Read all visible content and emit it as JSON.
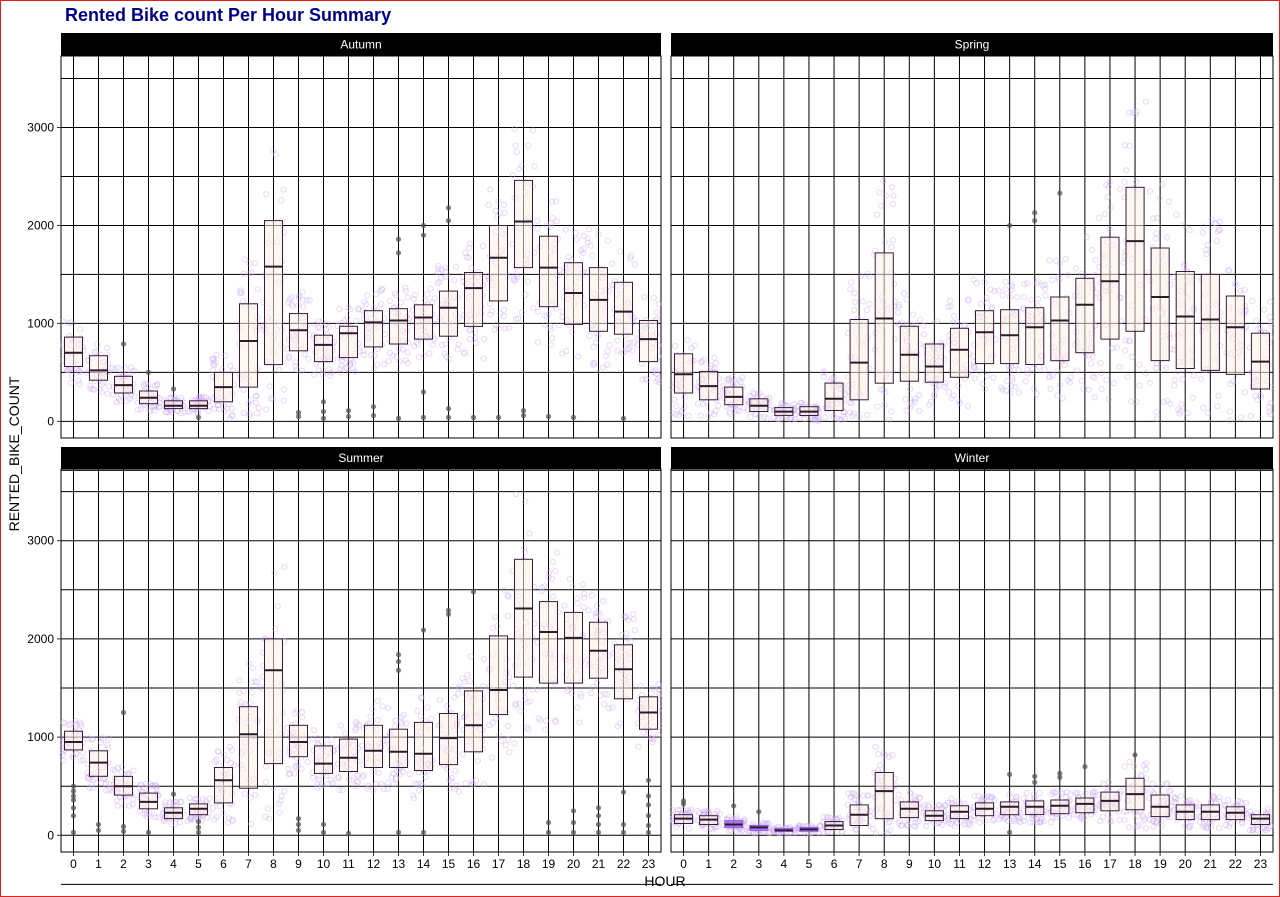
{
  "chart_data": {
    "type": "boxplot",
    "title": "Rented Bike count Per Hour Summary",
    "xlabel": "HOUR",
    "ylabel": "RENTED_BIKE_COUNT",
    "ylim": [
      -170,
      3730
    ],
    "yticks": [
      0,
      1000,
      2000,
      3000
    ],
    "grid": true,
    "legend": "none",
    "colors": {
      "box_fill": "#fdf0e6",
      "box_outline": "#3a1a3a",
      "points": "#c9a8f2",
      "outliers": "#555555",
      "strip_bg": "#000000",
      "strip_text": "#ffffff",
      "title": "#00008b",
      "winter_box": "#9a5ee8",
      "border": "#e0201a"
    },
    "categories": [
      "0",
      "1",
      "2",
      "3",
      "4",
      "5",
      "6",
      "7",
      "8",
      "9",
      "10",
      "11",
      "12",
      "13",
      "14",
      "15",
      "16",
      "17",
      "18",
      "19",
      "20",
      "21",
      "22",
      "23"
    ],
    "facets": [
      {
        "name": "Autumn",
        "boxes": [
          [
            560,
            700,
            860
          ],
          [
            420,
            520,
            670
          ],
          [
            290,
            370,
            460
          ],
          [
            180,
            240,
            310
          ],
          [
            130,
            160,
            210
          ],
          [
            130,
            160,
            210
          ],
          [
            200,
            350,
            500
          ],
          [
            350,
            820,
            1200
          ],
          [
            580,
            1580,
            2050
          ],
          [
            720,
            930,
            1100
          ],
          [
            610,
            780,
            880
          ],
          [
            650,
            900,
            970
          ],
          [
            760,
            1010,
            1130
          ],
          [
            790,
            1030,
            1150
          ],
          [
            840,
            1060,
            1190
          ],
          [
            870,
            1160,
            1330
          ],
          [
            970,
            1360,
            1520
          ],
          [
            1230,
            1670,
            2000
          ],
          [
            1570,
            2040,
            2460
          ],
          [
            1170,
            1570,
            1890
          ],
          [
            990,
            1310,
            1620
          ],
          [
            920,
            1240,
            1570
          ],
          [
            890,
            1120,
            1420
          ],
          [
            610,
            840,
            1030
          ]
        ],
        "outliers": [
          [
            2,
            790
          ],
          [
            3,
            500
          ],
          [
            4,
            330
          ],
          [
            5,
            40
          ],
          [
            9,
            50
          ],
          [
            9,
            90
          ],
          [
            10,
            30
          ],
          [
            10,
            100
          ],
          [
            10,
            200
          ],
          [
            11,
            50
          ],
          [
            11,
            110
          ],
          [
            12,
            60
          ],
          [
            12,
            150
          ],
          [
            13,
            30
          ],
          [
            13,
            1720
          ],
          [
            13,
            1860
          ],
          [
            14,
            40
          ],
          [
            14,
            300
          ],
          [
            14,
            1900
          ],
          [
            14,
            2000
          ],
          [
            15,
            40
          ],
          [
            15,
            130
          ],
          [
            15,
            2050
          ],
          [
            15,
            2180
          ],
          [
            16,
            40
          ],
          [
            17,
            40
          ],
          [
            18,
            60
          ],
          [
            18,
            110
          ],
          [
            19,
            50
          ],
          [
            20,
            40
          ],
          [
            22,
            30
          ]
        ]
      },
      {
        "name": "Spring",
        "boxes": [
          [
            290,
            480,
            690
          ],
          [
            220,
            360,
            510
          ],
          [
            170,
            250,
            350
          ],
          [
            100,
            160,
            230
          ],
          [
            60,
            100,
            140
          ],
          [
            60,
            100,
            150
          ],
          [
            110,
            230,
            390
          ],
          [
            220,
            600,
            1040
          ],
          [
            390,
            1050,
            1720
          ],
          [
            410,
            680,
            970
          ],
          [
            400,
            560,
            790
          ],
          [
            450,
            730,
            950
          ],
          [
            590,
            910,
            1130
          ],
          [
            590,
            880,
            1140
          ],
          [
            580,
            960,
            1160
          ],
          [
            620,
            1030,
            1270
          ],
          [
            700,
            1190,
            1460
          ],
          [
            840,
            1430,
            1880
          ],
          [
            920,
            1840,
            2390
          ],
          [
            620,
            1270,
            1770
          ],
          [
            540,
            1070,
            1530
          ],
          [
            520,
            1040,
            1500
          ],
          [
            480,
            960,
            1280
          ],
          [
            330,
            610,
            900
          ]
        ],
        "outliers": [
          [
            13,
            2000
          ],
          [
            14,
            2050
          ],
          [
            14,
            2130
          ],
          [
            15,
            2330
          ]
        ]
      },
      {
        "name": "Summer",
        "boxes": [
          [
            870,
            950,
            1060
          ],
          [
            600,
            740,
            860
          ],
          [
            410,
            500,
            600
          ],
          [
            270,
            340,
            430
          ],
          [
            170,
            230,
            280
          ],
          [
            210,
            270,
            320
          ],
          [
            330,
            560,
            690
          ],
          [
            480,
            1030,
            1310
          ],
          [
            730,
            1680,
            2000
          ],
          [
            800,
            950,
            1120
          ],
          [
            630,
            730,
            910
          ],
          [
            650,
            790,
            980
          ],
          [
            690,
            860,
            1120
          ],
          [
            690,
            850,
            1080
          ],
          [
            660,
            830,
            1150
          ],
          [
            720,
            990,
            1240
          ],
          [
            850,
            1120,
            1470
          ],
          [
            1230,
            1480,
            2030
          ],
          [
            1610,
            2310,
            2810
          ],
          [
            1550,
            2070,
            2380
          ],
          [
            1550,
            2010,
            2270
          ],
          [
            1600,
            1880,
            2170
          ],
          [
            1390,
            1690,
            1940
          ],
          [
            1080,
            1250,
            1410
          ]
        ],
        "outliers": [
          [
            0,
            30
          ],
          [
            0,
            200
          ],
          [
            0,
            280
          ],
          [
            0,
            360
          ],
          [
            0,
            400
          ],
          [
            0,
            450
          ],
          [
            0,
            500
          ],
          [
            1,
            50
          ],
          [
            1,
            110
          ],
          [
            2,
            40
          ],
          [
            2,
            90
          ],
          [
            2,
            1250
          ],
          [
            3,
            30
          ],
          [
            4,
            420
          ],
          [
            5,
            30
          ],
          [
            5,
            80
          ],
          [
            5,
            140
          ],
          [
            9,
            50
          ],
          [
            9,
            110
          ],
          [
            9,
            170
          ],
          [
            10,
            30
          ],
          [
            10,
            110
          ],
          [
            11,
            20
          ],
          [
            13,
            30
          ],
          [
            13,
            1680
          ],
          [
            13,
            1770
          ],
          [
            13,
            1840
          ],
          [
            14,
            30
          ],
          [
            14,
            2090
          ],
          [
            15,
            2250
          ],
          [
            15,
            2290
          ],
          [
            16,
            2480
          ],
          [
            19,
            30
          ],
          [
            19,
            130
          ],
          [
            20,
            30
          ],
          [
            20,
            130
          ],
          [
            20,
            250
          ],
          [
            21,
            30
          ],
          [
            21,
            110
          ],
          [
            21,
            200
          ],
          [
            21,
            280
          ],
          [
            22,
            30
          ],
          [
            22,
            110
          ],
          [
            22,
            440
          ],
          [
            23,
            30
          ],
          [
            23,
            100
          ],
          [
            23,
            200
          ],
          [
            23,
            310
          ],
          [
            23,
            400
          ],
          [
            23,
            560
          ]
        ]
      },
      {
        "name": "Winter",
        "boxes": [
          [
            120,
            170,
            210
          ],
          [
            110,
            160,
            200
          ],
          [
            80,
            110,
            150
          ],
          [
            50,
            80,
            100
          ],
          [
            40,
            50,
            70
          ],
          [
            40,
            60,
            80
          ],
          [
            60,
            100,
            140
          ],
          [
            100,
            210,
            310
          ],
          [
            170,
            450,
            640
          ],
          [
            180,
            270,
            340
          ],
          [
            150,
            200,
            250
          ],
          [
            170,
            240,
            300
          ],
          [
            200,
            270,
            330
          ],
          [
            210,
            290,
            340
          ],
          [
            210,
            290,
            350
          ],
          [
            220,
            300,
            360
          ],
          [
            230,
            320,
            380
          ],
          [
            250,
            350,
            440
          ],
          [
            260,
            420,
            580
          ],
          [
            190,
            290,
            410
          ],
          [
            160,
            240,
            310
          ],
          [
            160,
            240,
            310
          ],
          [
            160,
            230,
            290
          ],
          [
            110,
            170,
            210
          ]
        ],
        "outliers": [
          [
            0,
            320
          ],
          [
            0,
            350
          ],
          [
            2,
            300
          ],
          [
            3,
            240
          ],
          [
            13,
            30
          ],
          [
            13,
            620
          ],
          [
            14,
            540
          ],
          [
            14,
            600
          ],
          [
            15,
            590
          ],
          [
            15,
            630
          ],
          [
            16,
            700
          ],
          [
            18,
            820
          ]
        ]
      }
    ]
  }
}
